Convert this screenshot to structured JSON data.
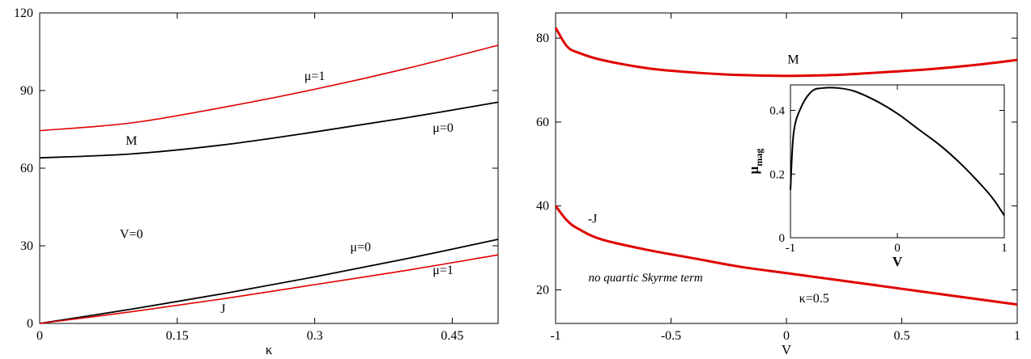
{
  "chart_data": [
    {
      "type": "line",
      "xlabel": "κ",
      "ylabel": "",
      "xlim": [
        0,
        0.5
      ],
      "ylim": [
        0,
        120
      ],
      "x_ticks": [
        "0",
        "0.15",
        "0.3",
        "0.45"
      ],
      "y_ticks": [
        "0",
        "30",
        "60",
        "90",
        "120"
      ],
      "series": [
        {
          "color": "#e00000",
          "x": [
            0,
            0.1,
            0.2,
            0.3,
            0.4,
            0.5
          ],
          "values": [
            74.5,
            77.5,
            83.5,
            90.5,
            98.5,
            107.5
          ]
        },
        {
          "color": "#000000",
          "x": [
            0,
            0.1,
            0.2,
            0.3,
            0.4,
            0.5
          ],
          "values": [
            64,
            65.5,
            69,
            74,
            79.5,
            85.5
          ]
        },
        {
          "color": "#000000",
          "x": [
            0,
            0.1,
            0.2,
            0.3,
            0.4,
            0.5
          ],
          "values": [
            0,
            5.5,
            11.5,
            18,
            25,
            32.5
          ]
        },
        {
          "color": "#e00000",
          "x": [
            0,
            0.1,
            0.2,
            0.3,
            0.4,
            0.5
          ],
          "values": [
            0,
            4.5,
            9.5,
            15,
            20.5,
            26.5
          ]
        }
      ],
      "annotations": [
        {
          "text": "μ=1",
          "x": 0.3,
          "y": 94
        },
        {
          "text": "M",
          "x": 0.1,
          "y": 69
        },
        {
          "text": "μ=0",
          "x": 0.44,
          "y": 74
        },
        {
          "text": "V=0",
          "x": 0.1,
          "y": 33
        },
        {
          "text": "μ=0",
          "x": 0.35,
          "y": 28
        },
        {
          "text": "μ=1",
          "x": 0.44,
          "y": 19
        },
        {
          "text": "J",
          "x": 0.2,
          "y": 4
        }
      ]
    },
    {
      "type": "line",
      "xlabel": "V",
      "ylabel": "",
      "xlim": [
        -1,
        1
      ],
      "ylim": [
        12,
        86
      ],
      "x_ticks": [
        "-1",
        "-0.5",
        "0",
        "0.5",
        "1"
      ],
      "y_ticks": [
        "20",
        "40",
        "60",
        "80"
      ],
      "series": [
        {
          "color": "#e00000",
          "x": [
            -1,
            -0.95,
            -0.9,
            -0.8,
            -0.6,
            -0.4,
            -0.2,
            0,
            0.2,
            0.4,
            0.6,
            0.8,
            1
          ],
          "values": [
            82.5,
            78,
            76.5,
            74.8,
            72.8,
            71.8,
            71.2,
            71,
            71.2,
            71.8,
            72.5,
            73.5,
            74.8
          ]
        },
        {
          "color": "#e00000",
          "x": [
            -1,
            -0.95,
            -0.9,
            -0.8,
            -0.6,
            -0.4,
            -0.2,
            0,
            0.2,
            0.4,
            0.6,
            0.8,
            1
          ],
          "values": [
            40,
            36.5,
            34.5,
            32,
            29.5,
            27.5,
            25.5,
            24,
            22.5,
            21,
            19.5,
            18,
            16.5
          ]
        }
      ],
      "annotations": [
        {
          "text": "M",
          "x": 0.03,
          "y": 74
        },
        {
          "text": "-J",
          "x": -0.84,
          "y": 36
        },
        {
          "text": "no quartic Skyrme term",
          "x": -0.61,
          "y": 22,
          "italic": true
        },
        {
          "text": "κ=0.5",
          "x": 0.12,
          "y": 17
        }
      ]
    },
    {
      "type": "line",
      "xlabel": "V",
      "ylabel": "μ",
      "ylabel_sub": "mag",
      "xlim": [
        -1,
        1
      ],
      "ylim": [
        0,
        0.48
      ],
      "x_ticks": [
        "-1",
        "0",
        "1"
      ],
      "y_ticks": [
        "0",
        "0.2",
        "0.4"
      ],
      "series": [
        {
          "color": "#000000",
          "x": [
            -1,
            -0.97,
            -0.9,
            -0.8,
            -0.7,
            -0.55,
            -0.4,
            -0.2,
            0,
            0.2,
            0.4,
            0.6,
            0.8,
            0.9,
            1
          ],
          "values": [
            0.15,
            0.33,
            0.41,
            0.46,
            0.47,
            0.47,
            0.46,
            0.43,
            0.39,
            0.34,
            0.29,
            0.23,
            0.16,
            0.12,
            0.07
          ]
        }
      ]
    }
  ]
}
